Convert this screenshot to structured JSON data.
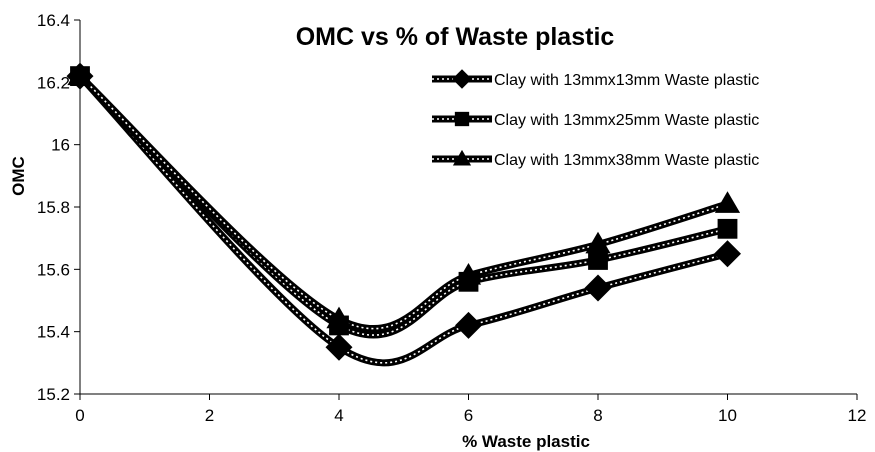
{
  "chart_data": {
    "type": "line",
    "title": "OMC vs % of Waste plastic",
    "xlabel": "% Waste plastic",
    "ylabel": "OMC",
    "xlim": [
      0,
      12
    ],
    "ylim": [
      15.2,
      16.4
    ],
    "x_ticks": [
      "0",
      "2",
      "4",
      "6",
      "8",
      "10",
      "12"
    ],
    "y_ticks": [
      "15.2",
      "15.4",
      "15.6",
      "15.8",
      "16",
      "16.2",
      "16.4"
    ],
    "x": [
      0,
      4,
      6,
      8,
      10
    ],
    "smoothed": true,
    "grid": false,
    "legend_position": "top-right",
    "series": [
      {
        "name": "Clay with 13mmx13mm Waste plastic",
        "marker": "diamond",
        "values": [
          16.22,
          15.35,
          15.42,
          15.54,
          15.65
        ]
      },
      {
        "name": "Clay with 13mmx25mm Waste plastic",
        "marker": "square",
        "values": [
          16.22,
          15.42,
          15.56,
          15.63,
          15.73
        ]
      },
      {
        "name": "Clay with 13mmx38mm Waste plastic",
        "marker": "triangle",
        "values": [
          16.22,
          15.44,
          15.58,
          15.68,
          15.81
        ]
      }
    ],
    "colors": {
      "line": "#000000",
      "dots": "#ffffff",
      "axis": "#000000"
    }
  }
}
